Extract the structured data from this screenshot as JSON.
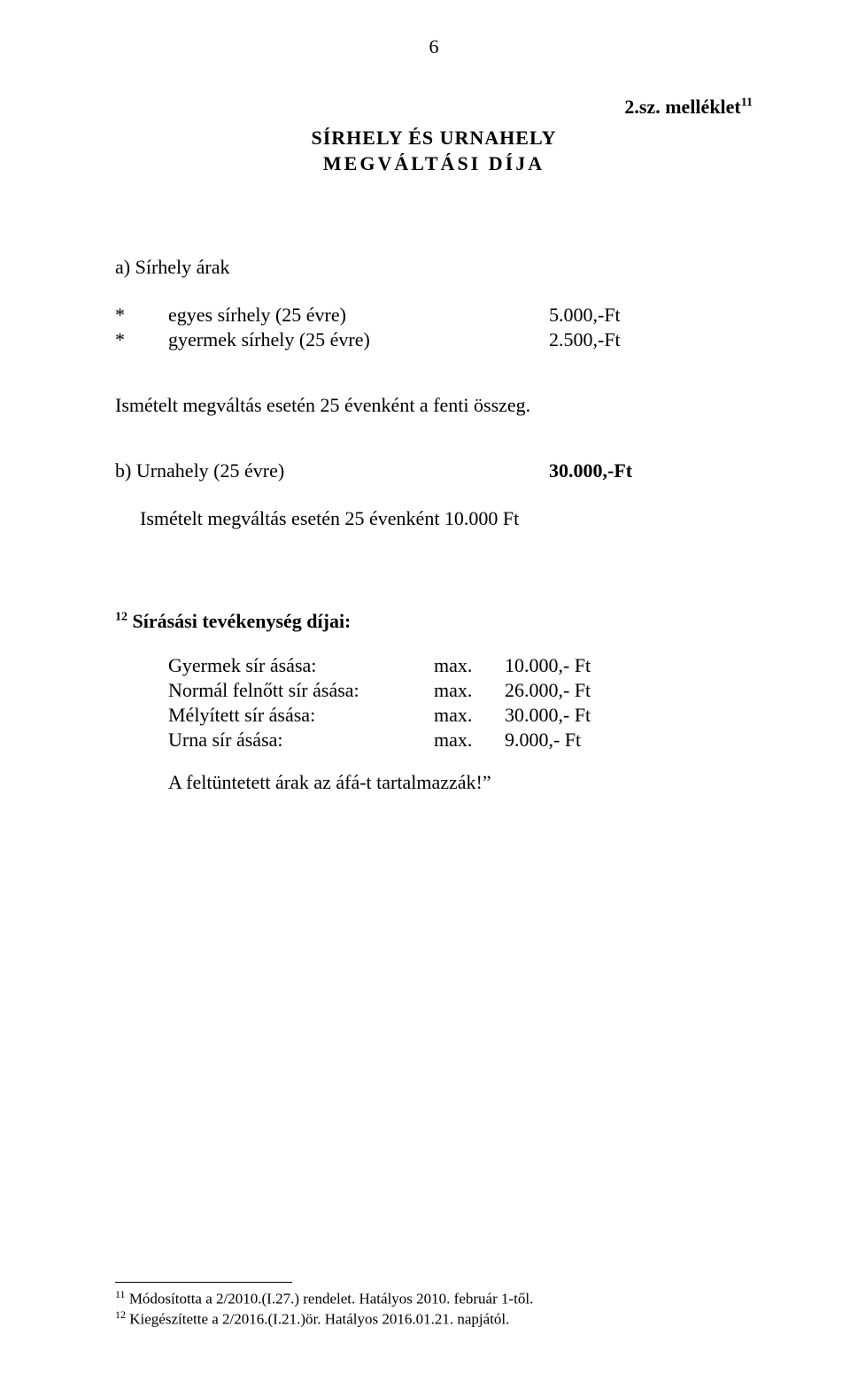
{
  "page_number": "6",
  "top_right": {
    "text": "2.sz. melléklet",
    "sup": "11"
  },
  "title": {
    "line1": "SÍRHELY  ÉS  URNAHELY",
    "line2": "MEGVÁLTÁSI  DÍJA"
  },
  "section_a": {
    "heading": "a) Sírhely árak",
    "rows": [
      {
        "star": "*",
        "label": "egyes sírhely (25 évre)",
        "value": "5.000,-Ft"
      },
      {
        "star": "*",
        "label": "gyermek sírhely (25 évre)",
        "value": "2.500,-Ft"
      }
    ],
    "note": "Ismételt megváltás esetén 25 évenként a fenti összeg."
  },
  "section_b": {
    "label": "b) Urnahely  (25 évre)",
    "value": "30.000,-Ft",
    "note": "Ismételt megváltás esetén 25 évenként  10.000 Ft"
  },
  "digging": {
    "sup": "12",
    "title": " Sírásási tevékenység díjai:",
    "rows": [
      {
        "label": "Gyermek sír ásása:",
        "max": "max.",
        "value": "10.000,- Ft"
      },
      {
        "label": "Normál felnőtt sír ásása:",
        "max": "max.",
        "value": "26.000,- Ft"
      },
      {
        "label": "Mélyített sír ásása:",
        "max": "max.",
        "value": "30.000,- Ft"
      },
      {
        "label": "Urna sír ásása:",
        "max": "max.",
        "value": "  9.000,- Ft"
      }
    ],
    "afa": "A feltüntetett árak az áfá-t tartalmazzák!”"
  },
  "footnotes": {
    "fn1": {
      "sup": "11",
      "text": " Módosította a 2/2010.(I.27.) rendelet. Hatályos 2010. február 1-től."
    },
    "fn2": {
      "sup": "12",
      "text": " Kiegészítette a 2/2016.(I.21.)ör. Hatályos 2016.01.21. napjától."
    }
  }
}
